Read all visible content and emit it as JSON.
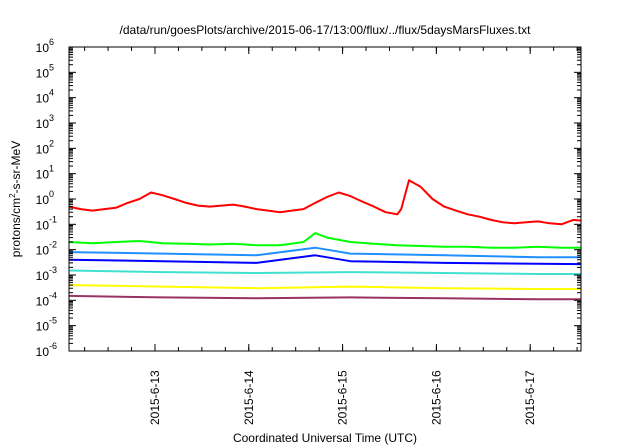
{
  "chart_data": {
    "type": "line",
    "title": "/data/run/goesPlots/archive/2015-06-17/13:00/flux/../flux/5daysMarsFluxes.txt",
    "xlabel": "Coordinated Universal Time (UTC)",
    "ylabel": {
      "base": "protons/cm",
      "sup": "2",
      "rest": "-s-sr-MeV"
    },
    "y_scale": "log",
    "ylim": [
      1e-06,
      1000000.0
    ],
    "x_range": [
      "2015-06-12T02:00",
      "2015-06-17T13:00"
    ],
    "y_ticks": [
      {
        "value": 1e-06,
        "base": "10",
        "exp": "-6"
      },
      {
        "value": 1e-05,
        "base": "10",
        "exp": "-5"
      },
      {
        "value": 0.0001,
        "base": "10",
        "exp": "-4"
      },
      {
        "value": 0.001,
        "base": "10",
        "exp": "-3"
      },
      {
        "value": 0.01,
        "base": "10",
        "exp": "-2"
      },
      {
        "value": 0.1,
        "base": "10",
        "exp": "-1"
      },
      {
        "value": 1.0,
        "base": "10",
        "exp": "0"
      },
      {
        "value": 10.0,
        "base": "10",
        "exp": "1"
      },
      {
        "value": 100.0,
        "base": "10",
        "exp": "2"
      },
      {
        "value": 1000.0,
        "base": "10",
        "exp": "3"
      },
      {
        "value": 10000.0,
        "base": "10",
        "exp": "4"
      },
      {
        "value": 100000.0,
        "base": "10",
        "exp": "5"
      },
      {
        "value": 1000000.0,
        "base": "10",
        "exp": "6"
      }
    ],
    "x_ticks": [
      {
        "value": "2015-06-13T00:00",
        "label": "2015-6-13"
      },
      {
        "value": "2015-06-14T00:00",
        "label": "2015-6-14"
      },
      {
        "value": "2015-06-15T00:00",
        "label": "2015-6-15"
      },
      {
        "value": "2015-06-16T00:00",
        "label": "2015-6-16"
      },
      {
        "value": "2015-06-17T00:00",
        "label": "2015-6-17"
      }
    ],
    "grid": false,
    "legend": "none",
    "series": [
      {
        "color": "#ff0000",
        "x": [
          "2015-06-12T02:00",
          "2015-06-12T05:00",
          "2015-06-12T08:00",
          "2015-06-12T11:00",
          "2015-06-12T14:00",
          "2015-06-12T17:00",
          "2015-06-12T20:00",
          "2015-06-12T23:00",
          "2015-06-13T02:00",
          "2015-06-13T05:00",
          "2015-06-13T08:00",
          "2015-06-13T11:00",
          "2015-06-13T14:00",
          "2015-06-13T17:00",
          "2015-06-13T20:00",
          "2015-06-13T23:00",
          "2015-06-14T02:00",
          "2015-06-14T05:00",
          "2015-06-14T08:00",
          "2015-06-14T11:00",
          "2015-06-14T14:00",
          "2015-06-14T17:00",
          "2015-06-14T20:00",
          "2015-06-14T23:00",
          "2015-06-15T02:00",
          "2015-06-15T05:00",
          "2015-06-15T08:00",
          "2015-06-15T11:00",
          "2015-06-15T14:00",
          "2015-06-15T15:00",
          "2015-06-15T17:00",
          "2015-06-15T20:00",
          "2015-06-15T23:00",
          "2015-06-16T02:00",
          "2015-06-16T05:00",
          "2015-06-16T08:00",
          "2015-06-16T11:00",
          "2015-06-16T14:00",
          "2015-06-16T17:00",
          "2015-06-16T20:00",
          "2015-06-16T23:00",
          "2015-06-17T02:00",
          "2015-06-17T05:00",
          "2015-06-17T08:00",
          "2015-06-17T11:00",
          "2015-06-17T13:00"
        ],
        "values": [
          0.5,
          0.4,
          0.35,
          0.4,
          0.45,
          0.7,
          1.0,
          1.8,
          1.4,
          1.0,
          0.7,
          0.55,
          0.5,
          0.55,
          0.6,
          0.5,
          0.4,
          0.35,
          0.3,
          0.35,
          0.4,
          0.7,
          1.2,
          1.8,
          1.3,
          0.8,
          0.5,
          0.3,
          0.25,
          0.4,
          5.5,
          3.0,
          1.0,
          0.5,
          0.35,
          0.25,
          0.2,
          0.15,
          0.12,
          0.11,
          0.12,
          0.13,
          0.11,
          0.1,
          0.15,
          0.14
        ]
      },
      {
        "color": "#00ff00",
        "x": [
          "2015-06-12T02:00",
          "2015-06-12T08:00",
          "2015-06-12T14:00",
          "2015-06-12T20:00",
          "2015-06-13T02:00",
          "2015-06-13T08:00",
          "2015-06-13T14:00",
          "2015-06-13T20:00",
          "2015-06-14T02:00",
          "2015-06-14T08:00",
          "2015-06-14T14:00",
          "2015-06-14T17:00",
          "2015-06-14T20:00",
          "2015-06-15T02:00",
          "2015-06-15T08:00",
          "2015-06-15T14:00",
          "2015-06-15T20:00",
          "2015-06-16T02:00",
          "2015-06-16T08:00",
          "2015-06-16T14:00",
          "2015-06-16T20:00",
          "2015-06-17T02:00",
          "2015-06-17T08:00",
          "2015-06-17T13:00"
        ],
        "values": [
          0.02,
          0.018,
          0.02,
          0.022,
          0.018,
          0.017,
          0.016,
          0.017,
          0.015,
          0.015,
          0.02,
          0.045,
          0.03,
          0.02,
          0.017,
          0.015,
          0.014,
          0.013,
          0.013,
          0.012,
          0.012,
          0.013,
          0.012,
          0.012
        ]
      },
      {
        "color": "#1e90ff",
        "x": [
          "2015-06-12T02:00",
          "2015-06-13T02:00",
          "2015-06-14T02:00",
          "2015-06-14T17:00",
          "2015-06-15T02:00",
          "2015-06-16T02:00",
          "2015-06-17T02:00",
          "2015-06-17T13:00"
        ],
        "values": [
          0.008,
          0.007,
          0.006,
          0.012,
          0.007,
          0.006,
          0.005,
          0.005
        ]
      },
      {
        "color": "#0000ff",
        "x": [
          "2015-06-12T02:00",
          "2015-06-13T02:00",
          "2015-06-14T02:00",
          "2015-06-14T17:00",
          "2015-06-15T02:00",
          "2015-06-16T02:00",
          "2015-06-17T02:00",
          "2015-06-17T13:00"
        ],
        "values": [
          0.004,
          0.0035,
          0.003,
          0.006,
          0.0035,
          0.003,
          0.0028,
          0.0027
        ]
      },
      {
        "color": "#40e0d0",
        "x": [
          "2015-06-12T02:00",
          "2015-06-13T02:00",
          "2015-06-14T02:00",
          "2015-06-15T02:00",
          "2015-06-16T02:00",
          "2015-06-17T02:00",
          "2015-06-17T13:00"
        ],
        "values": [
          0.0015,
          0.0013,
          0.0012,
          0.0013,
          0.0012,
          0.0011,
          0.0011
        ]
      },
      {
        "color": "#ffff00",
        "x": [
          "2015-06-12T02:00",
          "2015-06-13T02:00",
          "2015-06-14T02:00",
          "2015-06-15T02:00",
          "2015-06-16T02:00",
          "2015-06-17T02:00",
          "2015-06-17T13:00"
        ],
        "values": [
          0.0004,
          0.00035,
          0.0003,
          0.00035,
          0.0003,
          0.00028,
          0.00028
        ]
      },
      {
        "color": "#993366",
        "x": [
          "2015-06-12T02:00",
          "2015-06-13T02:00",
          "2015-06-14T02:00",
          "2015-06-15T02:00",
          "2015-06-16T02:00",
          "2015-06-17T02:00",
          "2015-06-17T13:00"
        ],
        "values": [
          0.00015,
          0.00013,
          0.00012,
          0.00013,
          0.00012,
          0.00011,
          0.00011
        ]
      }
    ]
  }
}
